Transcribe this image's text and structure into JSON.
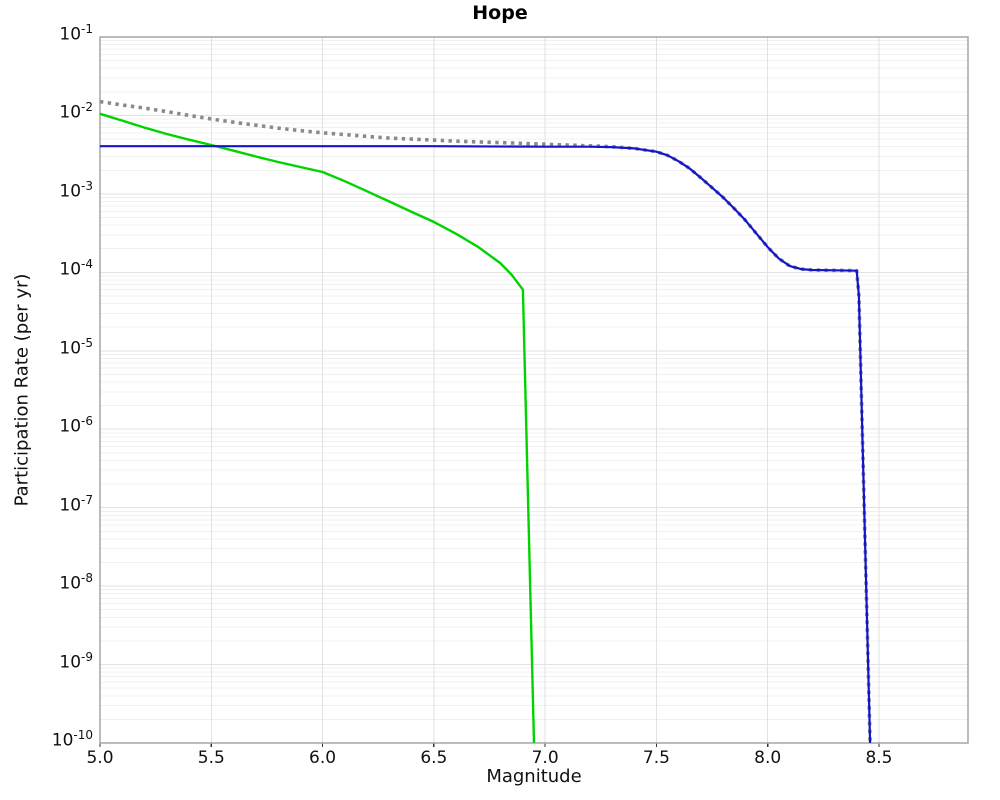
{
  "chart_data": {
    "type": "line",
    "title": "Hope",
    "xlabel": "Magnitude",
    "ylabel": "Participation Rate (per yr)",
    "xlim": [
      5.0,
      8.9
    ],
    "ylim_log10": [
      -1,
      -10
    ],
    "grid": true,
    "legend": "none",
    "xtick_labels": [
      "5.0",
      "5.5",
      "6.0",
      "6.5",
      "7.0",
      "7.5",
      "8.0",
      "8.5"
    ],
    "ytick_exponents": [
      -1,
      -2,
      -3,
      -4,
      -5,
      -6,
      -7,
      -8,
      -9,
      -10
    ],
    "colors": {
      "grid_major": "#e2e2e2",
      "grid_minor": "#f0f0f0",
      "plot_border": "#a6a6a6",
      "tick_mark": "#333333",
      "text": "#111111"
    },
    "series": [
      {
        "name": "gray-dotted",
        "color": "#8a8a8a",
        "style": "dotted",
        "width": 3.6,
        "points": [
          [
            5.0,
            0.015
          ],
          [
            5.1,
            0.0136
          ],
          [
            5.2,
            0.0124
          ],
          [
            5.3,
            0.0112
          ],
          [
            5.4,
            0.01
          ],
          [
            5.5,
            0.009
          ],
          [
            5.6,
            0.0082
          ],
          [
            5.7,
            0.0075
          ],
          [
            5.8,
            0.0069
          ],
          [
            5.9,
            0.0064
          ],
          [
            6.0,
            0.006
          ],
          [
            6.1,
            0.0057
          ],
          [
            6.2,
            0.0054
          ],
          [
            6.3,
            0.00515
          ],
          [
            6.4,
            0.005
          ],
          [
            6.5,
            0.00485
          ],
          [
            6.6,
            0.0047
          ],
          [
            6.7,
            0.0046
          ],
          [
            6.8,
            0.0045
          ],
          [
            6.9,
            0.0044
          ],
          [
            7.0,
            0.0043
          ],
          [
            7.1,
            0.0042
          ],
          [
            7.2,
            0.0041
          ],
          [
            7.3,
            0.004
          ],
          [
            7.4,
            0.0038
          ],
          [
            7.5,
            0.00345
          ],
          [
            7.55,
            0.0031
          ],
          [
            7.6,
            0.0026
          ],
          [
            7.65,
            0.0021
          ],
          [
            7.7,
            0.0016
          ],
          [
            7.75,
            0.0012
          ],
          [
            7.8,
            0.0009
          ],
          [
            7.85,
            0.00065
          ],
          [
            7.9,
            0.00046
          ],
          [
            7.95,
            0.00031
          ],
          [
            8.0,
            0.00021
          ],
          [
            8.05,
            0.00015
          ],
          [
            8.1,
            0.00012
          ],
          [
            8.15,
            0.00011
          ],
          [
            8.2,
            0.000107
          ],
          [
            8.3,
            0.000106
          ],
          [
            8.4,
            0.000105
          ],
          [
            8.41,
            5e-05
          ],
          [
            8.46,
            1e-10
          ]
        ]
      },
      {
        "name": "green-solid",
        "color": "#00d400",
        "style": "solid",
        "width": 2.4,
        "points": [
          [
            5.0,
            0.0105
          ],
          [
            5.1,
            0.0086
          ],
          [
            5.2,
            0.007
          ],
          [
            5.3,
            0.0058
          ],
          [
            5.4,
            0.0049
          ],
          [
            5.5,
            0.0042
          ],
          [
            5.6,
            0.00355
          ],
          [
            5.7,
            0.003
          ],
          [
            5.8,
            0.00255
          ],
          [
            5.9,
            0.0022
          ],
          [
            6.0,
            0.0019
          ],
          [
            6.1,
            0.00145
          ],
          [
            6.2,
            0.00108
          ],
          [
            6.3,
            0.0008
          ],
          [
            6.4,
            0.00059
          ],
          [
            6.5,
            0.00044
          ],
          [
            6.6,
            0.00031
          ],
          [
            6.7,
            0.00021
          ],
          [
            6.8,
            0.00013
          ],
          [
            6.85,
            9.3e-05
          ],
          [
            6.9,
            6e-05
          ],
          [
            6.95,
            1e-10
          ]
        ]
      },
      {
        "name": "blue-solid",
        "color": "#1414cc",
        "style": "solid",
        "width": 2.2,
        "points": [
          [
            5.0,
            0.00405
          ],
          [
            6.0,
            0.00405
          ],
          [
            6.5,
            0.00405
          ],
          [
            7.0,
            0.004
          ],
          [
            7.2,
            0.004
          ],
          [
            7.3,
            0.00395
          ],
          [
            7.4,
            0.0038
          ],
          [
            7.5,
            0.00345
          ],
          [
            7.55,
            0.0031
          ],
          [
            7.6,
            0.0026
          ],
          [
            7.65,
            0.0021
          ],
          [
            7.7,
            0.0016
          ],
          [
            7.75,
            0.0012
          ],
          [
            7.8,
            0.0009
          ],
          [
            7.85,
            0.00065
          ],
          [
            7.9,
            0.00046
          ],
          [
            7.95,
            0.00031
          ],
          [
            8.0,
            0.00021
          ],
          [
            8.05,
            0.00015
          ],
          [
            8.1,
            0.00012
          ],
          [
            8.15,
            0.00011
          ],
          [
            8.2,
            0.000107
          ],
          [
            8.3,
            0.000106
          ],
          [
            8.4,
            0.000105
          ],
          [
            8.41,
            5e-05
          ],
          [
            8.46,
            1e-10
          ]
        ]
      }
    ]
  }
}
